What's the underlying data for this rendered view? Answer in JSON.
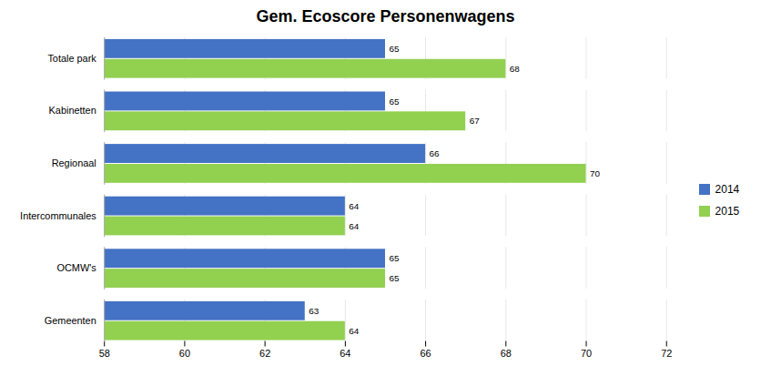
{
  "chart_data": {
    "type": "bar",
    "orientation": "horizontal",
    "title": "Gem. Ecoscore Personenwagens",
    "categories": [
      "Totale park",
      "Kabinetten",
      "Regionaal",
      "Intercommunales",
      "OCMW's",
      "Gemeenten"
    ],
    "series": [
      {
        "name": "2014",
        "color": "#4472C4",
        "values": [
          65,
          65,
          66,
          64,
          65,
          63
        ]
      },
      {
        "name": "2015",
        "color": "#92D050",
        "values": [
          68,
          67,
          70,
          64,
          65,
          64
        ]
      }
    ],
    "xlim": [
      58,
      72
    ],
    "xticks": [
      58,
      60,
      62,
      64,
      66,
      68,
      70,
      72
    ],
    "grid": true,
    "data_labels": true,
    "legend": "right"
  }
}
